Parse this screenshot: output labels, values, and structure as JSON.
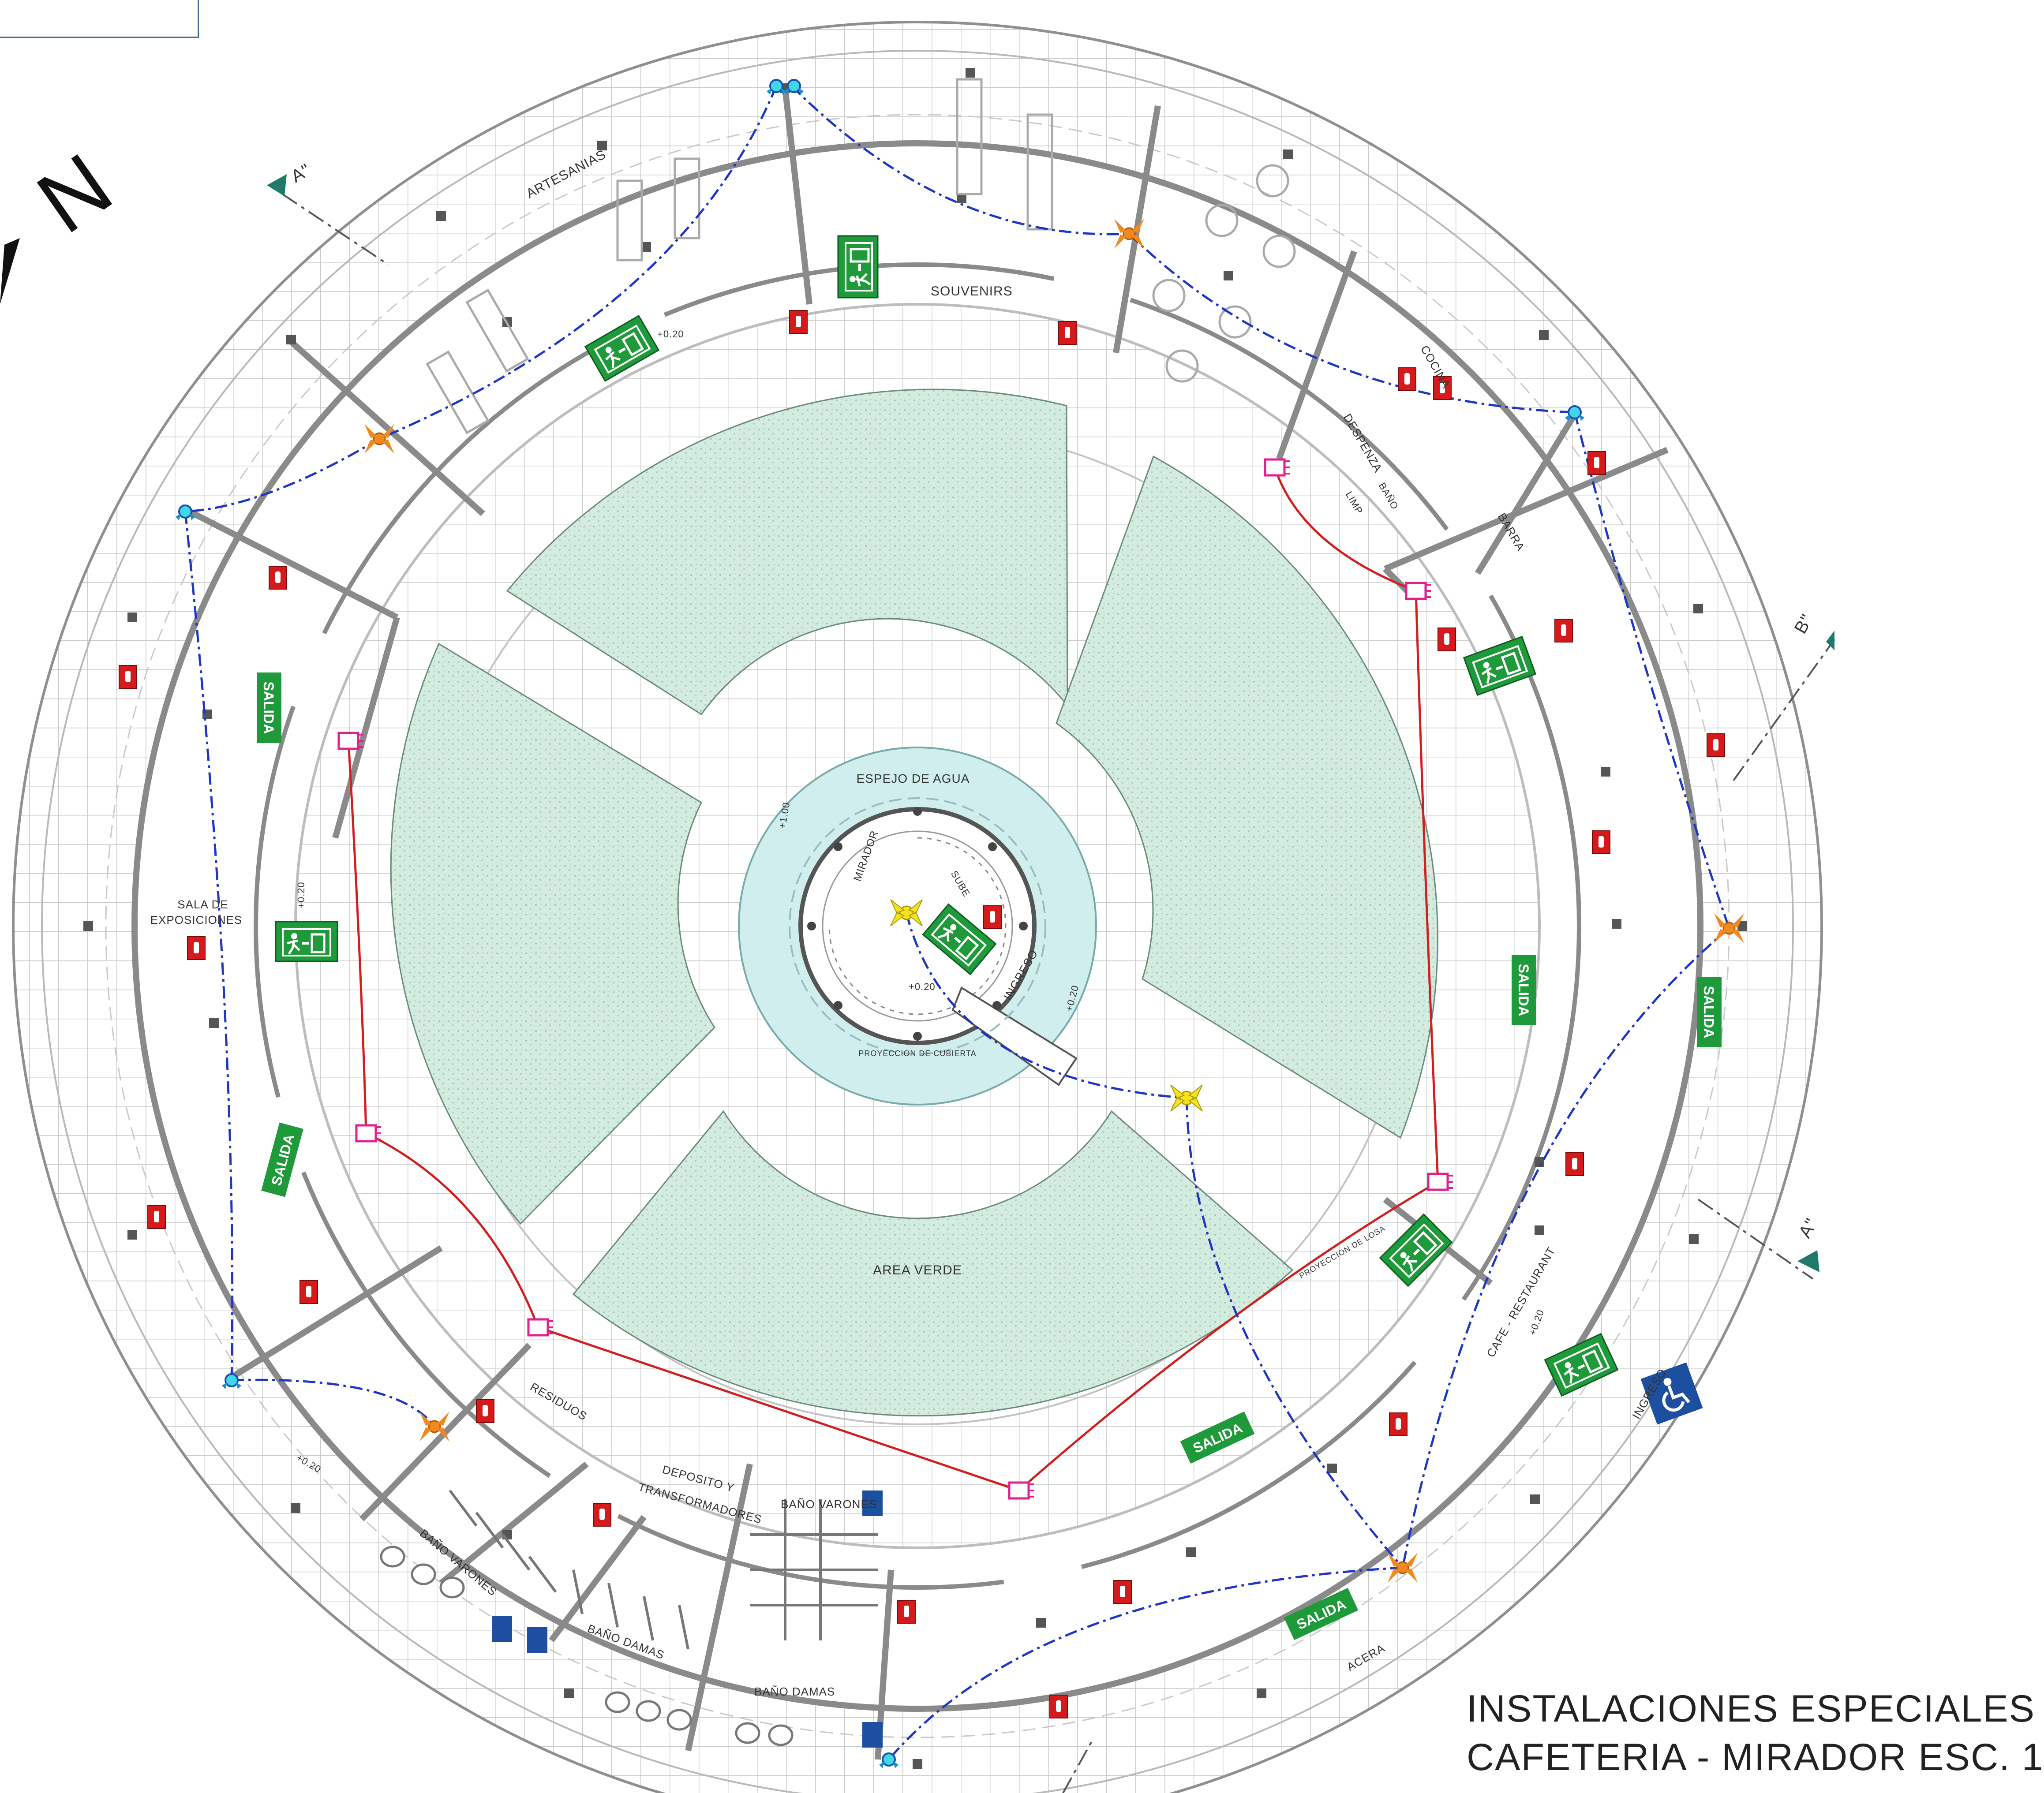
{
  "title": {
    "line1": "INSTALACIONES ESPECIALES",
    "line2": "CAFETERIA - MIRADOR  ESC. 1"
  },
  "north_arrow": {
    "label": "N"
  },
  "section_marks": [
    "A\"",
    "B\"",
    "A\""
  ],
  "rooms": {
    "artesanias": "ARTESANIAS",
    "souvenirs": "SOUVENIRS",
    "cocina": "COCINA",
    "despensa": "DESPENZA",
    "limp": "LIMP",
    "bano_cafe": "BAÑO",
    "barra": "BARRA",
    "sala": [
      "SALA DE",
      "EXPOSICIONES"
    ],
    "espejo": "ESPEJO DE AGUA",
    "mirador": "MIRADOR",
    "sube": "SUBE",
    "ingreso_mirador": "INGRESO",
    "proyeccion": "PROYECCION DE CUBIERTA",
    "area_verde": "AREA VERDE",
    "proyeccion_losa": "PROYECCION DE LOSA",
    "cafe": "CAFE - RESTAURANT",
    "ingreso": "INGRESO",
    "residuos": "RESIDUOS",
    "deposito": [
      "DEPOSITO Y",
      "TRANSFORMADORES"
    ],
    "bano_varones_1": "BAÑO VARONES",
    "bano_varones_2": "BAÑO VARONES",
    "bano_damas_1": "BAÑO DAMAS",
    "bano_damas_2": "BAÑO DAMAS",
    "acera": "ACERA"
  },
  "levels": [
    "+0.20",
    "+0.20",
    "+0.20",
    "+0.20",
    "+0.20",
    "+0.20",
    "+0.20",
    "+1.00"
  ],
  "signs": {
    "salida": "SALIDA"
  },
  "colors": {
    "grid": "#c9c9c9",
    "green_area": "#d4ebe0",
    "water": "#cfeeed",
    "wall": "#8a8a8a",
    "alarm_line": "#d11f1f",
    "detector_line": "#1f36c4",
    "exit_sign": "#1f9a3a",
    "extinguisher": "#d41a1a",
    "accessible": "#1c4fa0"
  }
}
